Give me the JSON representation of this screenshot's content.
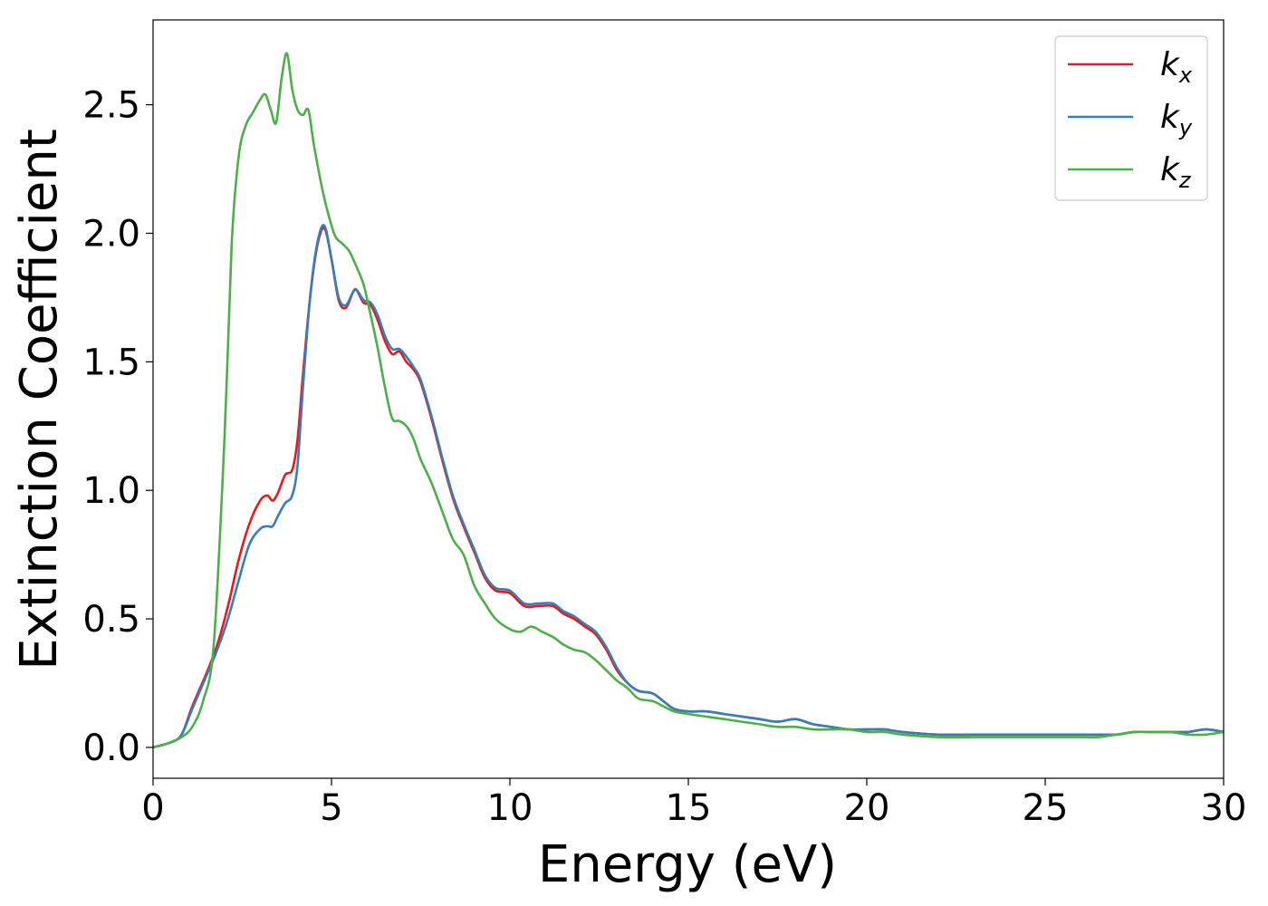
{
  "chart_data": {
    "type": "line",
    "title": "",
    "xlabel": "Energy (eV)",
    "ylabel": "Extinction Coefficient",
    "xlim": [
      0,
      30
    ],
    "ylim": [
      -0.12,
      2.83
    ],
    "xticks": [
      0,
      5,
      10,
      15,
      20,
      25,
      30
    ],
    "xtick_labels": [
      "0",
      "5",
      "10",
      "15",
      "20",
      "25",
      "30"
    ],
    "yticks": [
      0.0,
      0.5,
      1.0,
      1.5,
      2.0,
      2.5
    ],
    "ytick_labels": [
      "0.0",
      "0.5",
      "1.0",
      "1.5",
      "2.0",
      "2.5"
    ],
    "grid": false,
    "legend_position": "top-right",
    "series": [
      {
        "name": "k",
        "subscript": "x",
        "color": "#e41a1c",
        "x": [
          0,
          0.5,
          0.8,
          1.1,
          1.5,
          1.8,
          2.1,
          2.4,
          2.7,
          3.0,
          3.2,
          3.35,
          3.5,
          3.7,
          3.9,
          4.05,
          4.2,
          4.4,
          4.6,
          4.8,
          5.0,
          5.2,
          5.4,
          5.6,
          5.7,
          5.9,
          6.1,
          6.3,
          6.5,
          6.7,
          6.9,
          7.1,
          7.3,
          7.5,
          7.8,
          8.1,
          8.4,
          8.7,
          9.0,
          9.3,
          9.6,
          10.0,
          10.4,
          10.8,
          11.2,
          11.5,
          11.8,
          12.1,
          12.4,
          12.7,
          13.0,
          13.3,
          13.6,
          14.0,
          14.3,
          14.6,
          15.0,
          15.5,
          16.0,
          16.5,
          17.0,
          17.5,
          18.0,
          18.5,
          19.0,
          19.5,
          20.0,
          20.5,
          21.0,
          22.0,
          23.0,
          24.0,
          25.0,
          26.0,
          26.5,
          27.0,
          27.5,
          28.0,
          28.5,
          29.0,
          29.5,
          30.0
        ],
        "y": [
          0.0,
          0.02,
          0.05,
          0.16,
          0.29,
          0.4,
          0.55,
          0.73,
          0.87,
          0.96,
          0.98,
          0.96,
          0.99,
          1.06,
          1.08,
          1.2,
          1.45,
          1.75,
          1.95,
          2.02,
          1.9,
          1.74,
          1.71,
          1.77,
          1.78,
          1.73,
          1.72,
          1.66,
          1.58,
          1.53,
          1.54,
          1.5,
          1.47,
          1.42,
          1.28,
          1.12,
          0.97,
          0.86,
          0.76,
          0.66,
          0.61,
          0.6,
          0.55,
          0.55,
          0.55,
          0.52,
          0.5,
          0.47,
          0.44,
          0.38,
          0.3,
          0.25,
          0.22,
          0.21,
          0.18,
          0.15,
          0.14,
          0.14,
          0.13,
          0.12,
          0.11,
          0.1,
          0.11,
          0.09,
          0.08,
          0.07,
          0.07,
          0.07,
          0.06,
          0.05,
          0.05,
          0.05,
          0.05,
          0.05,
          0.05,
          0.05,
          0.06,
          0.06,
          0.06,
          0.06,
          0.07,
          0.06
        ]
      },
      {
        "name": "k",
        "subscript": "y",
        "color": "#377eb8",
        "x": [
          0,
          0.5,
          0.8,
          1.1,
          1.5,
          1.8,
          2.1,
          2.4,
          2.7,
          3.0,
          3.2,
          3.35,
          3.5,
          3.7,
          3.9,
          4.05,
          4.2,
          4.4,
          4.6,
          4.8,
          5.0,
          5.2,
          5.4,
          5.6,
          5.7,
          5.9,
          6.1,
          6.3,
          6.5,
          6.7,
          6.9,
          7.1,
          7.3,
          7.5,
          7.8,
          8.1,
          8.4,
          8.7,
          9.0,
          9.3,
          9.6,
          10.0,
          10.4,
          10.8,
          11.2,
          11.5,
          11.8,
          12.1,
          12.4,
          12.7,
          13.0,
          13.3,
          13.6,
          14.0,
          14.3,
          14.6,
          15.0,
          15.5,
          16.0,
          16.5,
          17.0,
          17.5,
          18.0,
          18.5,
          19.0,
          19.5,
          20.0,
          20.5,
          21.0,
          22.0,
          23.0,
          24.0,
          25.0,
          26.0,
          26.5,
          27.0,
          27.5,
          28.0,
          28.5,
          29.0,
          29.5,
          30.0
        ],
        "y": [
          0.0,
          0.02,
          0.05,
          0.15,
          0.28,
          0.38,
          0.5,
          0.65,
          0.79,
          0.85,
          0.86,
          0.86,
          0.9,
          0.95,
          0.98,
          1.1,
          1.4,
          1.75,
          1.96,
          2.03,
          1.9,
          1.75,
          1.72,
          1.77,
          1.78,
          1.74,
          1.73,
          1.68,
          1.6,
          1.55,
          1.55,
          1.52,
          1.48,
          1.43,
          1.29,
          1.13,
          0.98,
          0.87,
          0.77,
          0.67,
          0.62,
          0.61,
          0.56,
          0.56,
          0.56,
          0.53,
          0.51,
          0.48,
          0.45,
          0.39,
          0.31,
          0.25,
          0.22,
          0.21,
          0.18,
          0.15,
          0.14,
          0.14,
          0.13,
          0.12,
          0.11,
          0.1,
          0.11,
          0.09,
          0.08,
          0.07,
          0.07,
          0.07,
          0.06,
          0.05,
          0.05,
          0.05,
          0.05,
          0.05,
          0.05,
          0.05,
          0.06,
          0.06,
          0.06,
          0.06,
          0.07,
          0.06
        ]
      },
      {
        "name": "k",
        "subscript": "z",
        "color": "#4daf4a",
        "x": [
          0,
          0.5,
          0.8,
          1.1,
          1.4,
          1.7,
          2.0,
          2.2,
          2.4,
          2.6,
          2.8,
          3.0,
          3.15,
          3.3,
          3.45,
          3.6,
          3.75,
          3.9,
          4.05,
          4.2,
          4.35,
          4.5,
          4.7,
          4.9,
          5.1,
          5.3,
          5.5,
          5.7,
          5.9,
          6.1,
          6.3,
          6.5,
          6.7,
          6.9,
          7.1,
          7.3,
          7.5,
          7.8,
          8.1,
          8.4,
          8.7,
          9.0,
          9.3,
          9.6,
          10.0,
          10.3,
          10.6,
          10.9,
          11.2,
          11.5,
          11.8,
          12.1,
          12.4,
          12.7,
          13.0,
          13.3,
          13.6,
          14.0,
          14.3,
          14.6,
          15.0,
          15.5,
          16.0,
          16.5,
          17.0,
          17.5,
          18.0,
          18.5,
          19.0,
          19.5,
          20.0,
          20.5,
          21.0,
          22.0,
          23.0,
          24.0,
          25.0,
          26.0,
          26.5,
          27.0,
          27.5,
          28.0,
          28.5,
          29.0,
          29.5,
          30.0
        ],
        "y": [
          0.0,
          0.02,
          0.04,
          0.08,
          0.18,
          0.4,
          1.2,
          1.95,
          2.3,
          2.42,
          2.47,
          2.52,
          2.54,
          2.48,
          2.43,
          2.6,
          2.7,
          2.56,
          2.48,
          2.46,
          2.48,
          2.35,
          2.2,
          2.08,
          1.99,
          1.96,
          1.93,
          1.87,
          1.8,
          1.68,
          1.55,
          1.4,
          1.28,
          1.27,
          1.25,
          1.2,
          1.12,
          1.03,
          0.92,
          0.81,
          0.75,
          0.63,
          0.56,
          0.5,
          0.46,
          0.45,
          0.47,
          0.45,
          0.43,
          0.4,
          0.38,
          0.37,
          0.34,
          0.3,
          0.26,
          0.23,
          0.19,
          0.18,
          0.16,
          0.14,
          0.13,
          0.12,
          0.11,
          0.1,
          0.09,
          0.08,
          0.08,
          0.07,
          0.07,
          0.07,
          0.06,
          0.06,
          0.05,
          0.04,
          0.04,
          0.04,
          0.04,
          0.04,
          0.04,
          0.05,
          0.06,
          0.06,
          0.06,
          0.05,
          0.05,
          0.06
        ]
      }
    ]
  }
}
